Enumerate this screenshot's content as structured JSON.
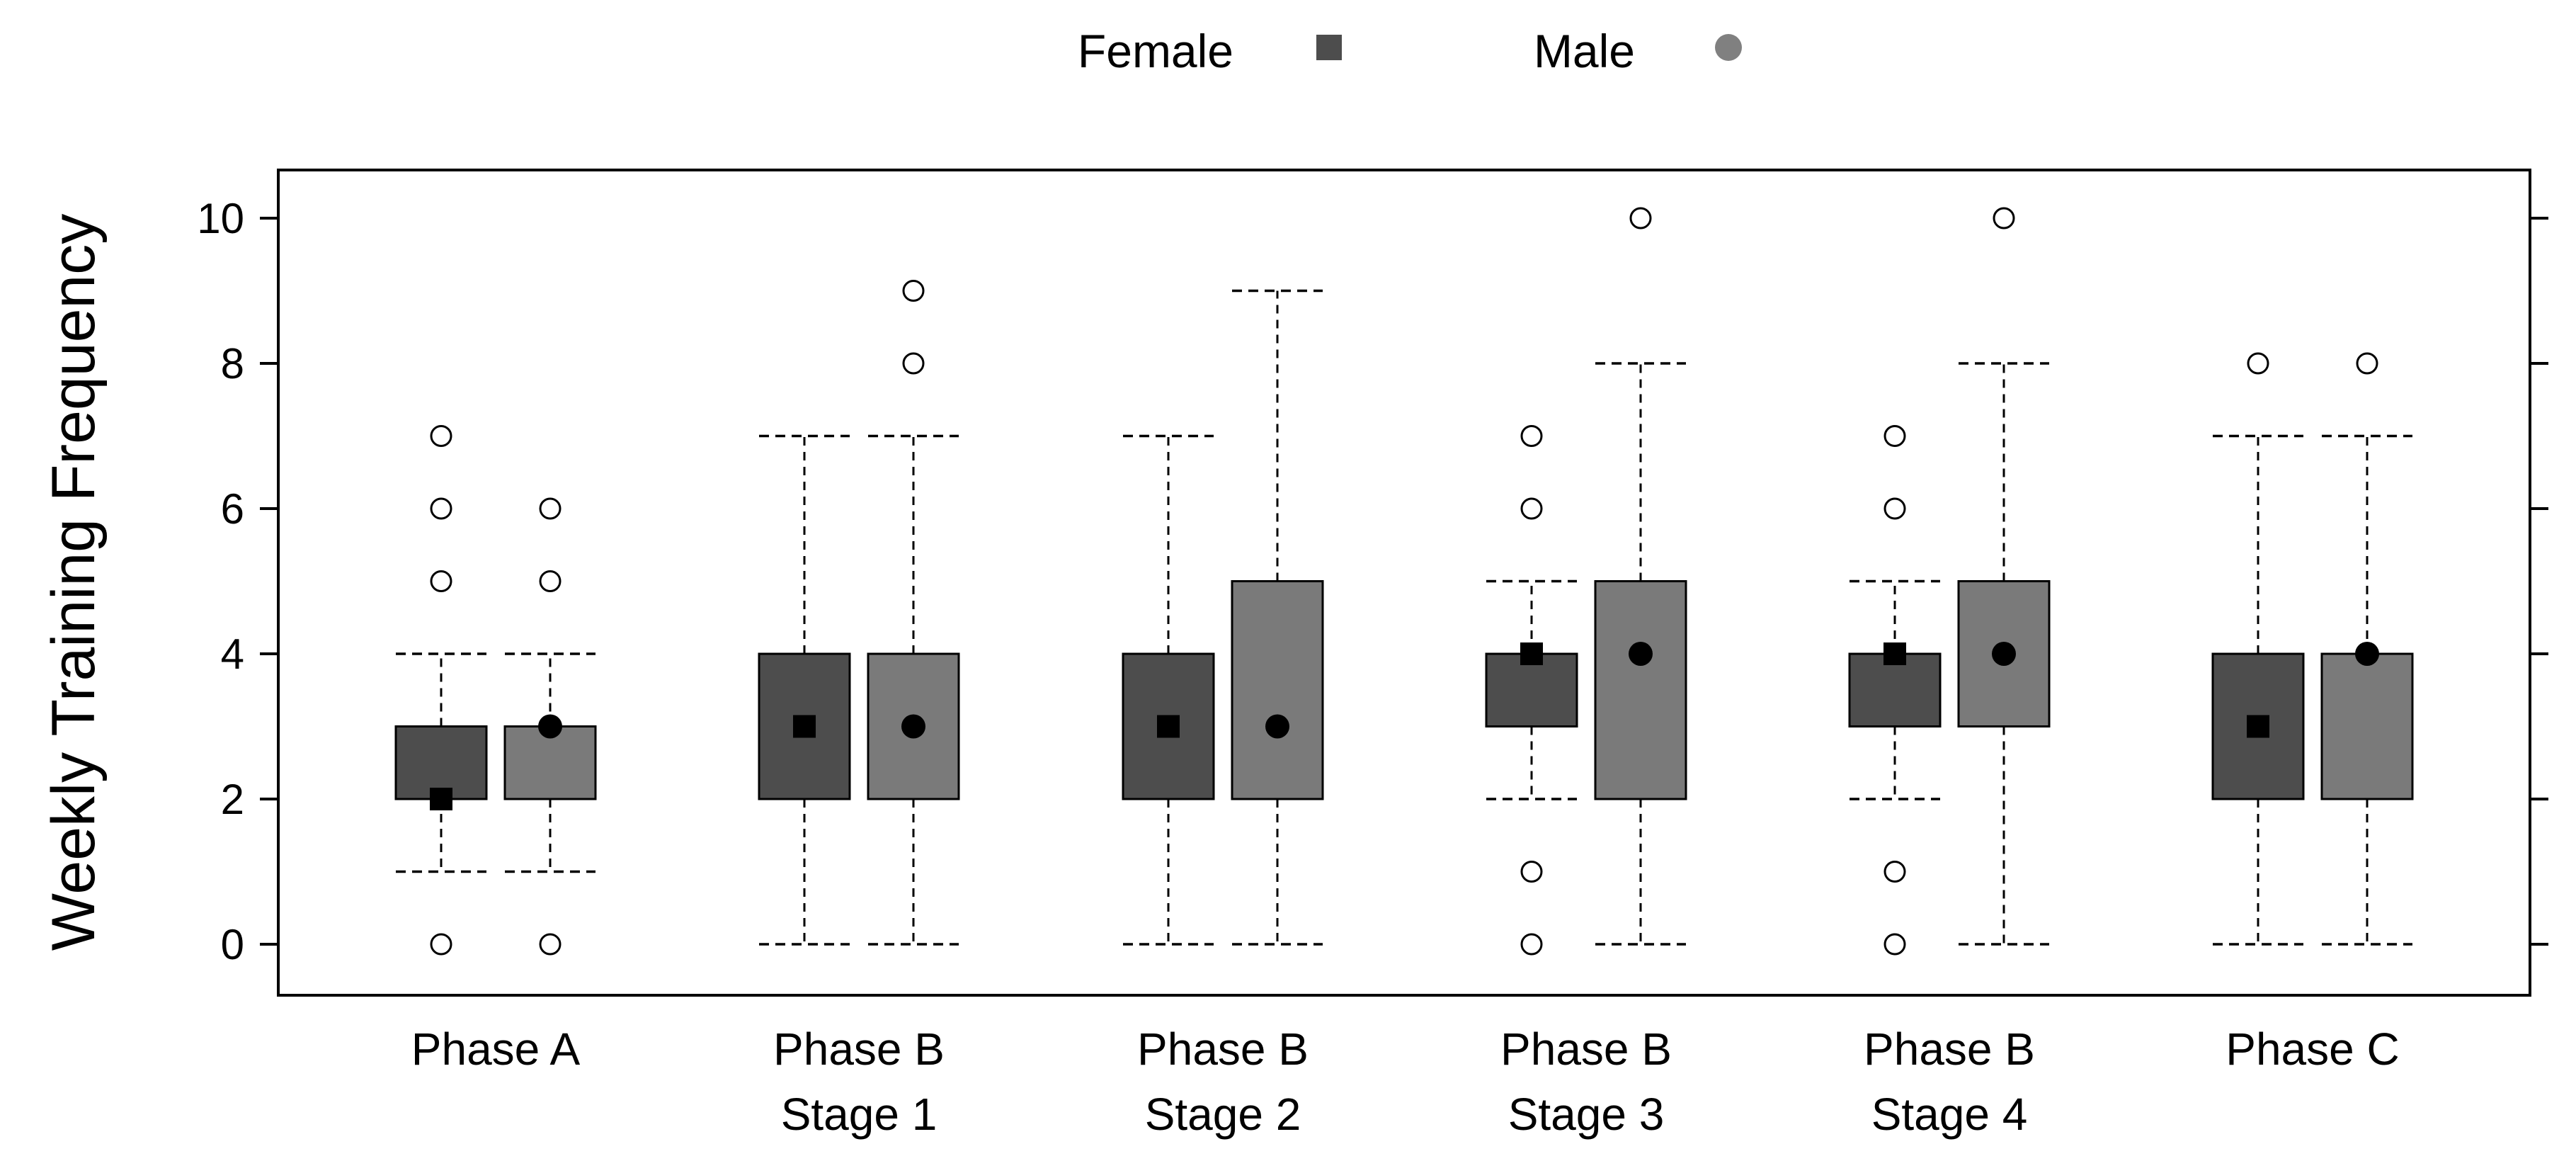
{
  "chart_data": {
    "type": "box",
    "ylabel": "Weekly Training Frequency",
    "ylim": [
      -0.7,
      10.7
    ],
    "yticks": [
      0,
      2,
      4,
      6,
      8,
      10
    ],
    "categories": [
      {
        "line1": "Phase A",
        "line2": ""
      },
      {
        "line1": "Phase B",
        "line2": "Stage 1"
      },
      {
        "line1": "Phase B",
        "line2": "Stage 2"
      },
      {
        "line1": "Phase B",
        "line2": "Stage 3"
      },
      {
        "line1": "Phase B",
        "line2": "Stage 4"
      },
      {
        "line1": "Phase C",
        "line2": ""
      }
    ],
    "legend": {
      "position": "top-center"
    },
    "series": [
      {
        "name": "Female",
        "marker": "square",
        "fill": "#4d4d4d",
        "legend_color": "#4d4d4d",
        "boxes": [
          {
            "whisker_low": 1,
            "q1": 2,
            "q3": 3,
            "whisker_high": 4,
            "mean": 2,
            "outliers": [
              0,
              5,
              6,
              7
            ]
          },
          {
            "whisker_low": 0,
            "q1": 2,
            "q3": 4,
            "whisker_high": 7,
            "mean": 3,
            "outliers": []
          },
          {
            "whisker_low": 0,
            "q1": 2,
            "q3": 4,
            "whisker_high": 7,
            "mean": 3,
            "outliers": []
          },
          {
            "whisker_low": 2,
            "q1": 3,
            "q3": 4,
            "whisker_high": 5,
            "mean": 4,
            "outliers": [
              0,
              1,
              6,
              7
            ]
          },
          {
            "whisker_low": 2,
            "q1": 3,
            "q3": 4,
            "whisker_high": 5,
            "mean": 4,
            "outliers": [
              0,
              1,
              6,
              7
            ]
          },
          {
            "whisker_low": 0,
            "q1": 2,
            "q3": 4,
            "whisker_high": 7,
            "mean": 3,
            "outliers": [
              8
            ]
          }
        ]
      },
      {
        "name": "Male",
        "marker": "circle",
        "fill": "#7a7a7a",
        "legend_color": "#808080",
        "boxes": [
          {
            "whisker_low": 1,
            "q1": 2,
            "q3": 3,
            "whisker_high": 4,
            "mean": 3,
            "outliers": [
              0,
              5,
              6
            ]
          },
          {
            "whisker_low": 0,
            "q1": 2,
            "q3": 4,
            "whisker_high": 7,
            "mean": 3,
            "outliers": [
              8,
              9
            ]
          },
          {
            "whisker_low": 0,
            "q1": 2,
            "q3": 5,
            "whisker_high": 9,
            "mean": 3,
            "outliers": []
          },
          {
            "whisker_low": 0,
            "q1": 2,
            "q3": 5,
            "whisker_high": 8,
            "mean": 4,
            "outliers": [
              10
            ]
          },
          {
            "whisker_low": 0,
            "q1": 3,
            "q3": 5,
            "whisker_high": 8,
            "mean": 4,
            "outliers": [
              10
            ]
          },
          {
            "whisker_low": 0,
            "q1": 2,
            "q3": 4,
            "whisker_high": 7,
            "mean": 4,
            "outliers": [
              8
            ]
          }
        ]
      }
    ]
  }
}
